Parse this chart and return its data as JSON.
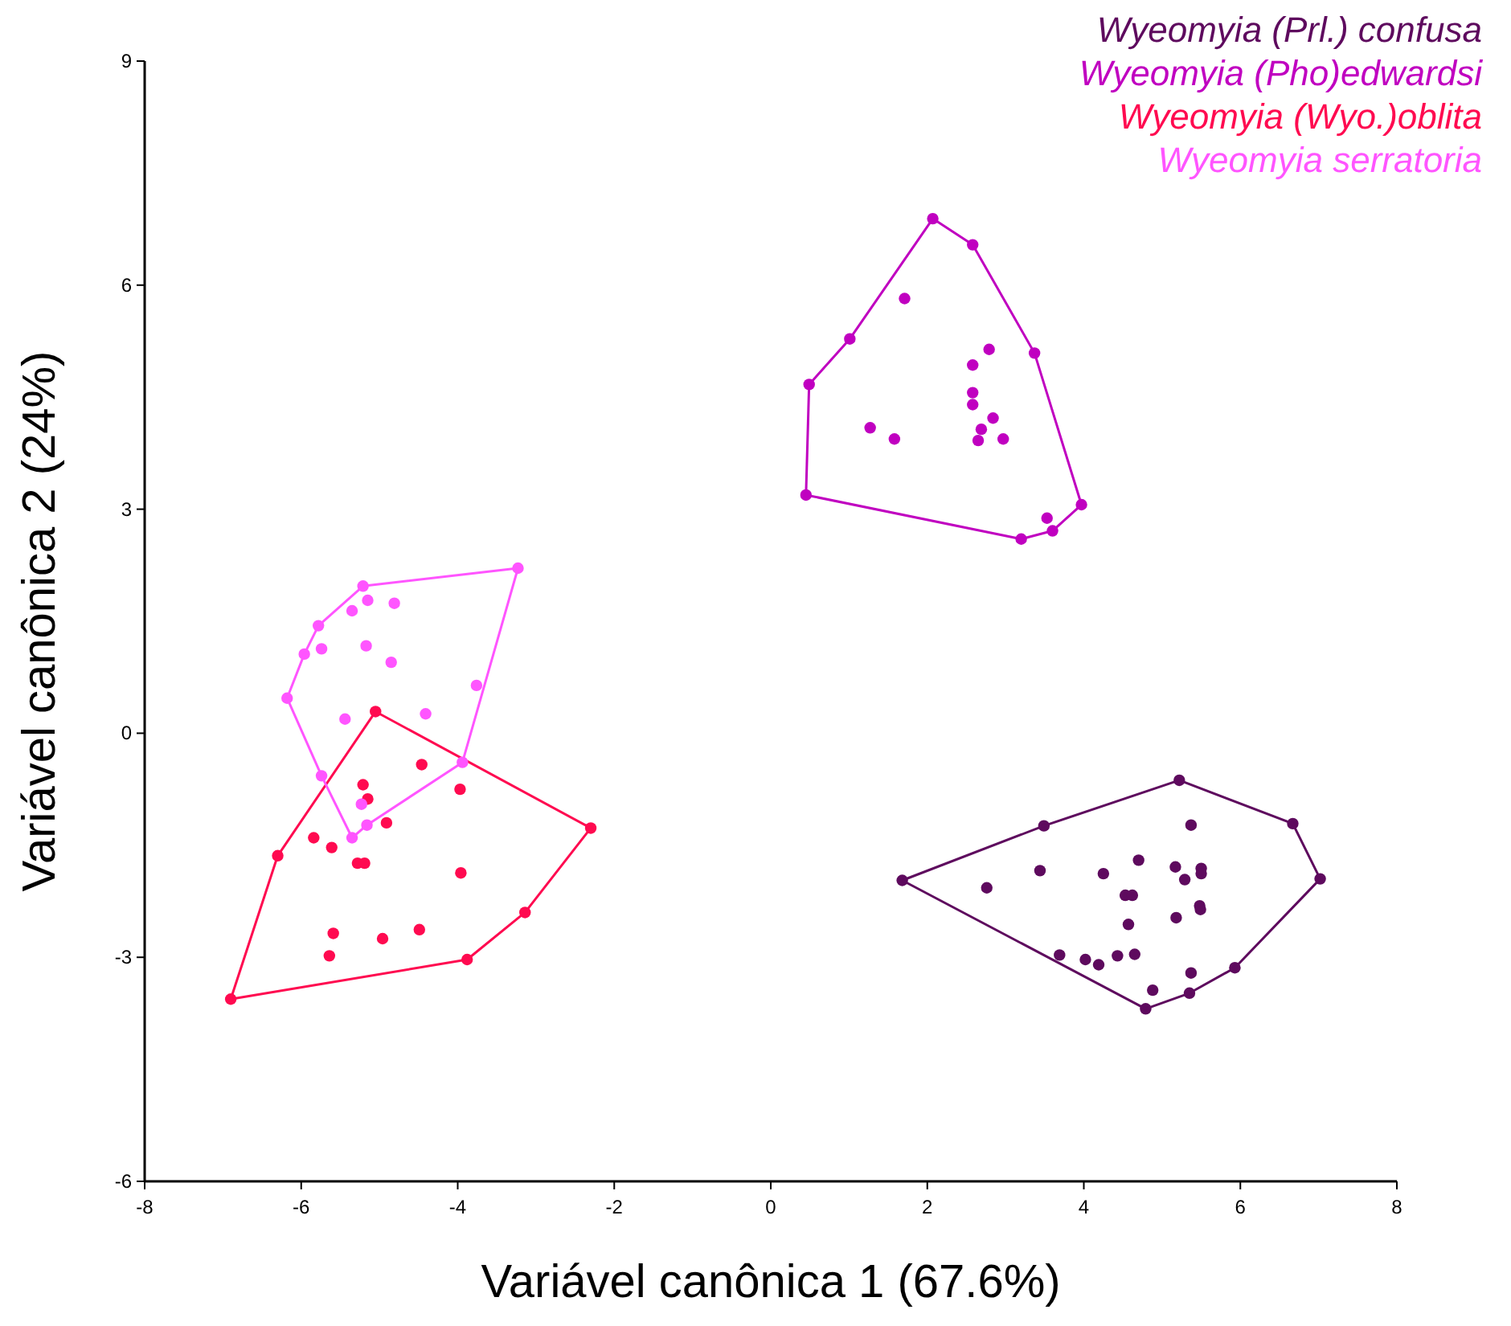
{
  "chart_data": {
    "type": "scatter",
    "xlabel": "Variável canônica 1 (67.6%)",
    "ylabel": "Variável canônica 2 (24%)",
    "xlim": [
      -8,
      8
    ],
    "xticks": [
      -8,
      -6,
      -4,
      -2,
      0,
      2,
      4,
      6,
      8
    ],
    "ylim": [
      -6,
      9
    ],
    "yticks": [
      -6,
      -3,
      0,
      3,
      6,
      9
    ],
    "grid": false,
    "legend": "top right",
    "series": [
      {
        "name": "Wyeomyia (Prl.) confusa",
        "marker": "circle",
        "color": "#5e0a5e",
        "x": [
          1.68,
          3.49,
          5.22,
          6.67,
          7.02,
          5.93,
          5.35,
          4.79,
          2.76,
          3.44,
          4.25,
          4.7,
          5.17,
          5.29,
          5.37,
          5.5,
          5.5,
          4.53,
          4.62,
          5.48,
          5.49,
          5.18,
          4.57,
          3.69,
          4.02,
          4.19,
          4.43,
          4.65,
          5.37,
          4.88
        ],
        "values": [
          -1.97,
          -1.24,
          -0.63,
          -1.21,
          -1.95,
          -3.14,
          -3.48,
          -3.69,
          -2.07,
          -1.84,
          -1.88,
          -1.7,
          -1.79,
          -1.96,
          -1.23,
          -1.81,
          -1.88,
          -2.17,
          -2.17,
          -2.31,
          -2.36,
          -2.47,
          -2.56,
          -2.97,
          -3.03,
          -3.1,
          -2.98,
          -2.96,
          -3.21,
          -3.44
        ]
      },
      {
        "type": "line",
        "color": "#5e0a5e",
        "x": [
          1.68,
          3.49,
          5.22,
          6.67,
          7.02
        ],
        "values": [
          -1.97,
          -1.24,
          -0.63,
          -1.21,
          -1.95
        ]
      },
      {
        "type": "line",
        "color": "#5e0a5e",
        "x": [
          1.68,
          4.79,
          5.35,
          5.93,
          7.02
        ],
        "values": [
          -1.97,
          -3.69,
          -3.48,
          -3.14,
          -1.95
        ]
      },
      {
        "name": "Wyeomyia (Pho)edwardsi",
        "marker": "circle",
        "color": "#c000c0",
        "x": [
          2.07,
          2.58,
          3.37,
          3.97,
          3.6,
          3.2,
          0.45,
          0.49,
          1.01,
          1.71,
          2.79,
          2.58,
          2.58,
          2.58,
          2.84,
          2.69,
          2.65,
          2.97,
          1.27,
          1.58,
          3.53
        ],
        "values": [
          6.89,
          6.54,
          5.09,
          3.06,
          2.71,
          2.6,
          3.19,
          4.67,
          5.28,
          5.82,
          5.14,
          4.93,
          4.56,
          4.4,
          4.22,
          4.07,
          3.92,
          3.94,
          4.09,
          3.94,
          2.88
        ]
      },
      {
        "type": "line",
        "color": "#c000c0",
        "x": [
          0.45,
          0.49,
          1.01,
          2.07,
          2.58,
          3.37,
          3.97
        ],
        "values": [
          3.19,
          4.67,
          5.28,
          6.89,
          6.54,
          5.09,
          3.06
        ]
      },
      {
        "type": "line",
        "color": "#c000c0",
        "x": [
          0.45,
          3.2,
          3.6,
          3.97
        ],
        "values": [
          3.19,
          2.6,
          2.71,
          3.06
        ]
      },
      {
        "name": "Wyeomyia (Wyo.)oblita",
        "marker": "circle",
        "color": "#ff0a50",
        "x": [
          -5.05,
          -2.3,
          -3.14,
          -3.88,
          -6.9,
          -6.3,
          -4.46,
          -3.97,
          -5.21,
          -5.15,
          -4.91,
          -5.84,
          -5.61,
          -5.28,
          -5.19,
          -3.96,
          -5.59,
          -4.96,
          -4.49,
          -5.64
        ],
        "values": [
          0.29,
          -1.27,
          -2.4,
          -3.03,
          -3.56,
          -1.64,
          -0.42,
          -0.75,
          -0.69,
          -0.88,
          -1.2,
          -1.4,
          -1.53,
          -1.74,
          -1.74,
          -1.87,
          -2.68,
          -2.75,
          -2.63,
          -2.98
        ]
      },
      {
        "type": "line",
        "color": "#ff0a50",
        "x": [
          -6.9,
          -6.3,
          -5.05,
          -2.3
        ],
        "values": [
          -3.56,
          -1.64,
          0.29,
          -1.27
        ]
      },
      {
        "type": "line",
        "color": "#ff0a50",
        "x": [
          -6.9,
          -3.88,
          -3.14,
          -2.3
        ],
        "values": [
          -3.56,
          -3.03,
          -2.4,
          -1.27
        ]
      },
      {
        "name": "Wyeomyia serratoria",
        "marker": "circle",
        "color": "#ff55ff",
        "x": [
          -3.23,
          -3.94,
          -5.16,
          -5.35,
          -5.74,
          -6.18,
          -5.96,
          -5.78,
          -5.21,
          -5.15,
          -4.81,
          -5.35,
          -5.74,
          -5.17,
          -4.85,
          -3.76,
          -4.41,
          -5.44,
          -5.23
        ],
        "values": [
          2.21,
          -0.39,
          -1.23,
          -1.4,
          -0.57,
          0.47,
          1.06,
          1.44,
          1.97,
          1.78,
          1.74,
          1.64,
          1.13,
          1.17,
          0.95,
          0.64,
          0.26,
          0.19,
          -0.95
        ]
      },
      {
        "type": "line",
        "color": "#ff55ff",
        "x": [
          -6.18,
          -5.96,
          -5.78,
          -5.21,
          -3.23
        ],
        "values": [
          0.47,
          1.06,
          1.44,
          1.97,
          2.21
        ]
      },
      {
        "type": "line",
        "color": "#ff55ff",
        "x": [
          -6.18,
          -5.74,
          -5.35,
          -5.16,
          -3.94,
          -3.23
        ],
        "values": [
          0.47,
          -0.57,
          -1.4,
          -1.23,
          -0.39,
          2.21
        ]
      }
    ]
  }
}
